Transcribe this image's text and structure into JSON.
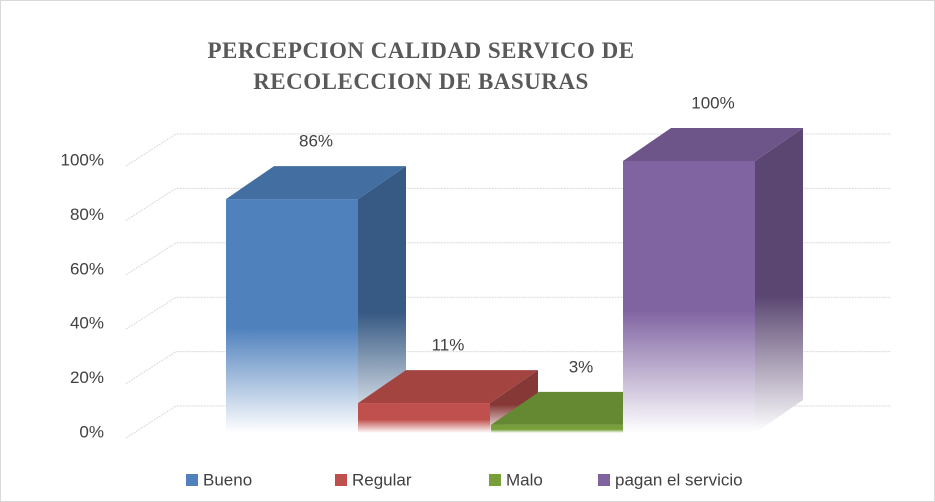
{
  "chart_data": {
    "type": "bar3d",
    "title": "PERCEPCION CALIDAD SERVICO DE RECOLECCION DE BASURAS",
    "series": [
      {
        "name": "Bueno",
        "color": "#4f81bd",
        "values": [
          86
        ],
        "value_labels": [
          "86%"
        ]
      },
      {
        "name": "Regular",
        "color": "#c0504d",
        "values": [
          11
        ],
        "value_labels": [
          "11%"
        ]
      },
      {
        "name": "Malo",
        "color": "#77a03b",
        "values": [
          3
        ],
        "value_labels": [
          "3%"
        ]
      },
      {
        "name": "pagan el servicio",
        "color": "#8064a2",
        "values": [
          100
        ],
        "value_labels": [
          "100%"
        ]
      }
    ],
    "ylim": [
      0,
      100
    ],
    "yticks": [
      {
        "value": 0,
        "label": "0%"
      },
      {
        "value": 20,
        "label": "20%"
      },
      {
        "value": 40,
        "label": "40%"
      },
      {
        "value": 60,
        "label": "60%"
      },
      {
        "value": 80,
        "label": "80%"
      },
      {
        "value": 100,
        "label": "100%"
      }
    ],
    "grid": true,
    "legend": "bottom"
  }
}
